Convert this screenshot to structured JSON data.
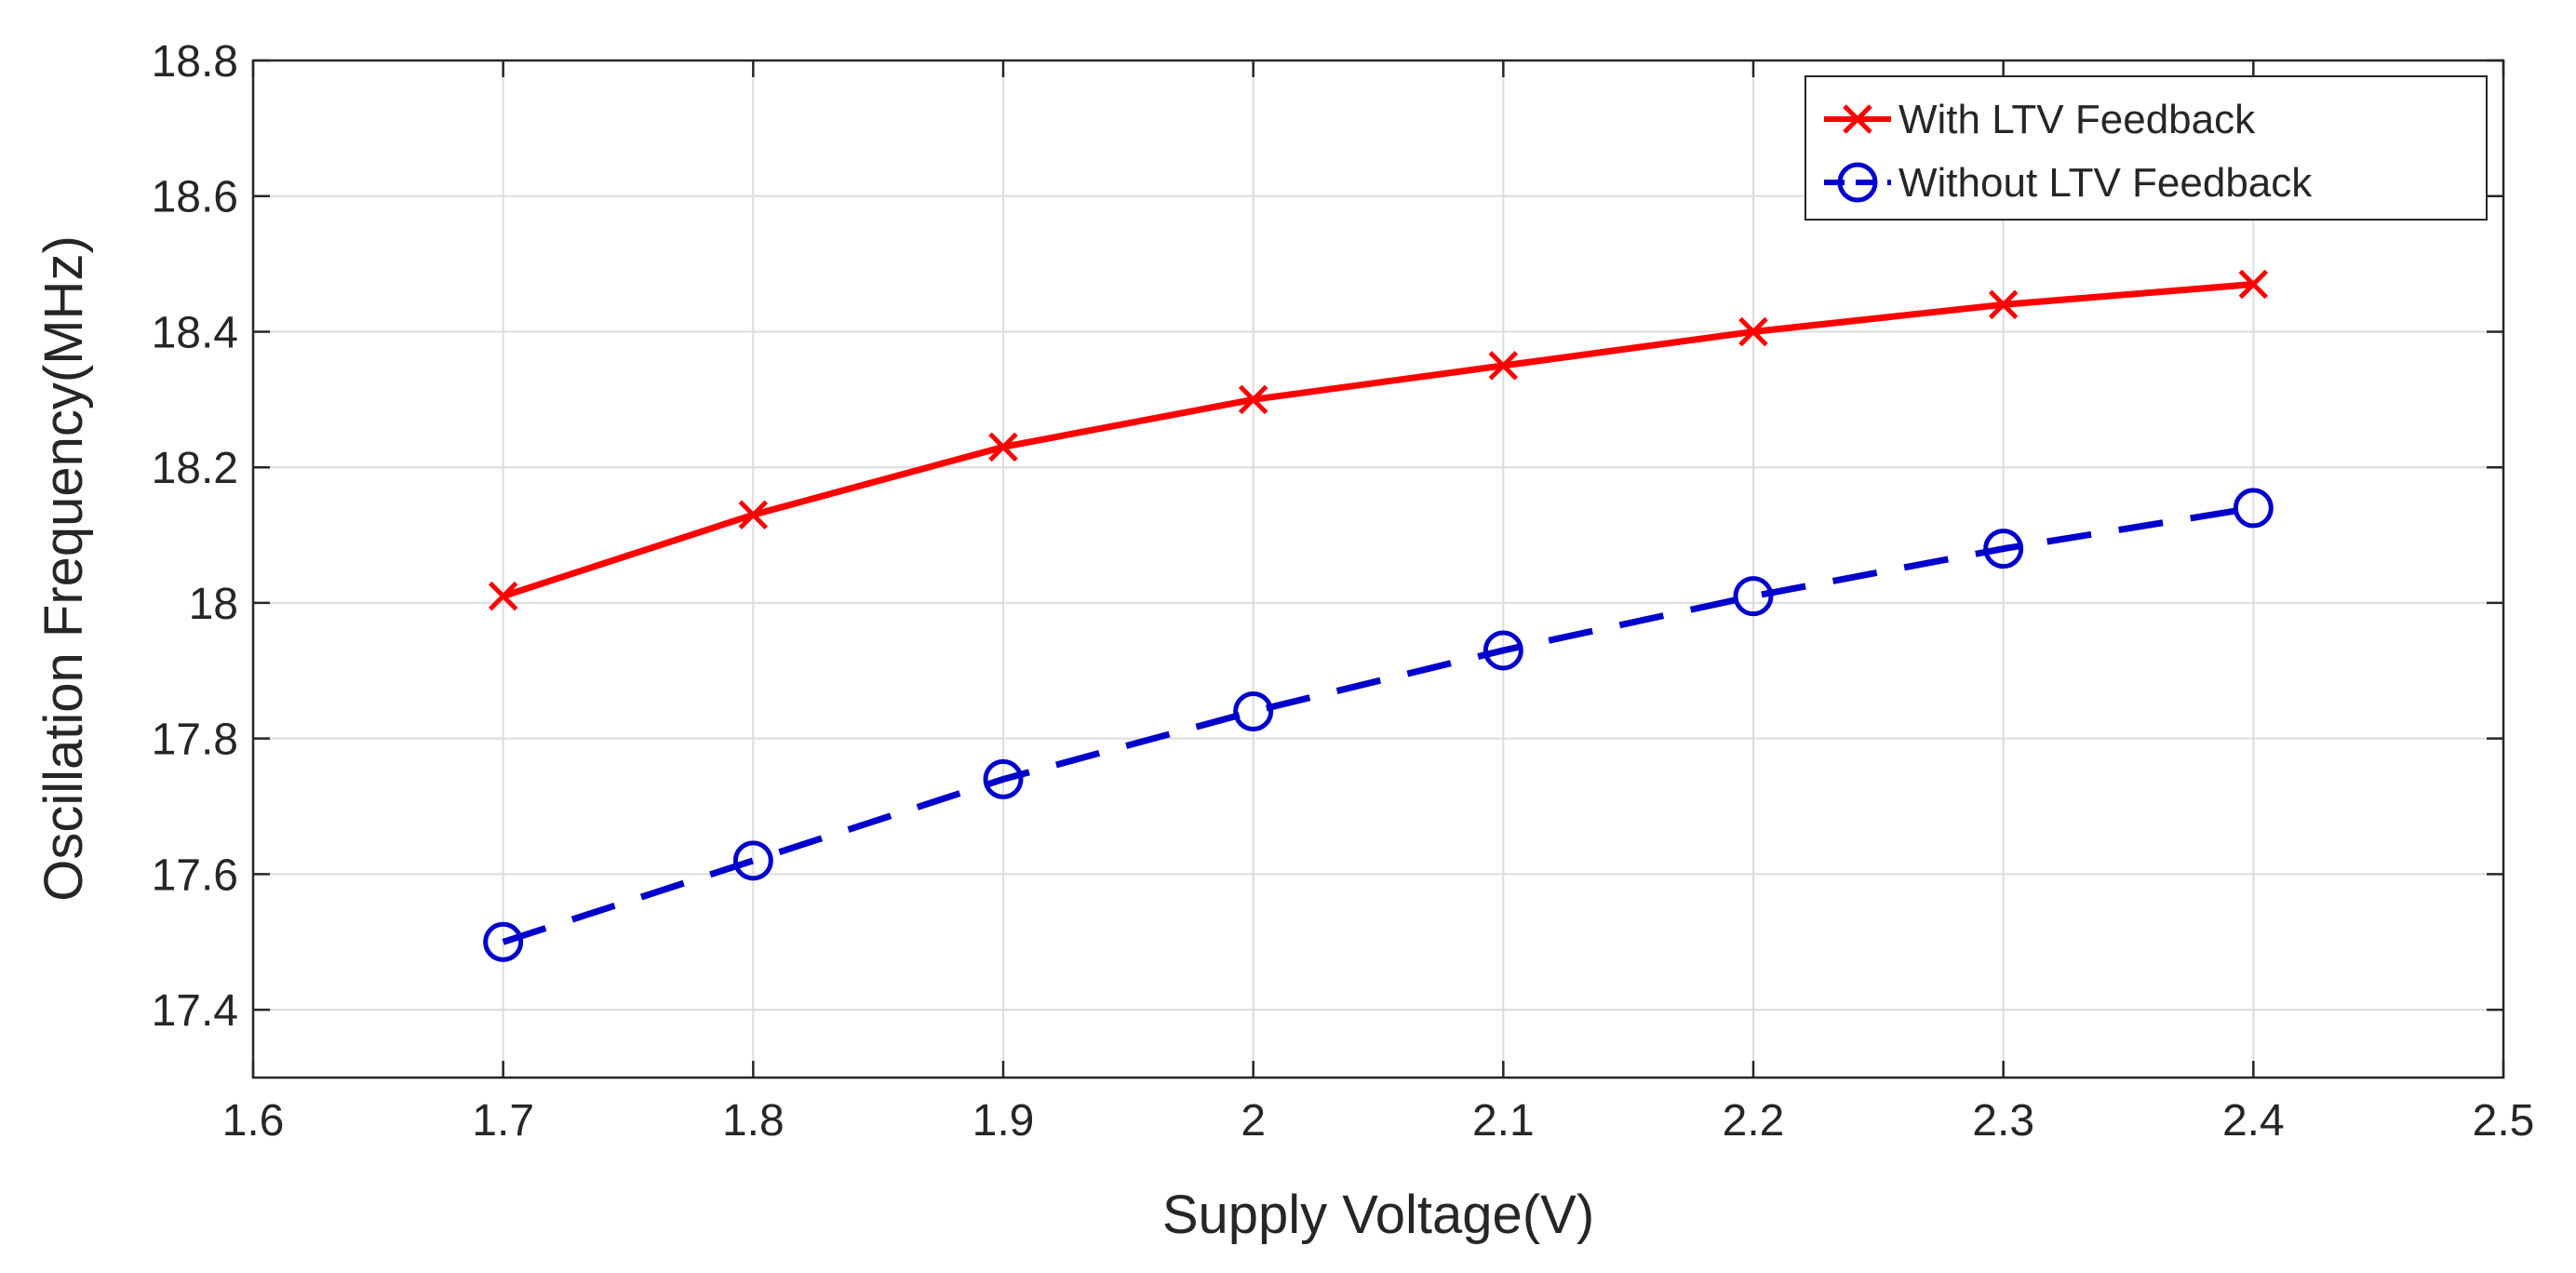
{
  "chart_data": {
    "type": "line",
    "title": "",
    "xlabel": "Supply Voltage(V)",
    "ylabel": "Oscillation Frequency(MHz)",
    "xlim": [
      1.6,
      2.5
    ],
    "ylim": [
      17.3,
      18.8
    ],
    "xticks": [
      1.6,
      1.7,
      1.8,
      1.9,
      2.0,
      2.1,
      2.2,
      2.3,
      2.4,
      2.5
    ],
    "xtick_labels": [
      "1.6",
      "1.7",
      "1.8",
      "1.9",
      "2",
      "2.1",
      "2.2",
      "2.3",
      "2.4",
      "2.5"
    ],
    "yticks": [
      17.4,
      17.6,
      17.8,
      18.0,
      18.2,
      18.4,
      18.6,
      18.8
    ],
    "ytick_labels": [
      "17.4",
      "17.6",
      "17.8",
      "18",
      "18.2",
      "18.4",
      "18.6",
      "18.8"
    ],
    "grid": true,
    "legend_position": "top-right",
    "x": [
      1.7,
      1.8,
      1.9,
      2.0,
      2.1,
      2.2,
      2.3,
      2.4
    ],
    "series": [
      {
        "name": "With LTV Feedback",
        "values": [
          18.01,
          18.13,
          18.23,
          18.3,
          18.35,
          18.4,
          18.44,
          18.47
        ],
        "color": "#ff0000",
        "line_style": "solid",
        "marker": "x"
      },
      {
        "name": "Without LTV Feedback",
        "values": [
          17.5,
          17.62,
          17.74,
          17.84,
          17.93,
          18.01,
          18.08,
          18.14
        ],
        "color": "#0000cc",
        "line_style": "dashed",
        "marker": "circle"
      }
    ]
  }
}
